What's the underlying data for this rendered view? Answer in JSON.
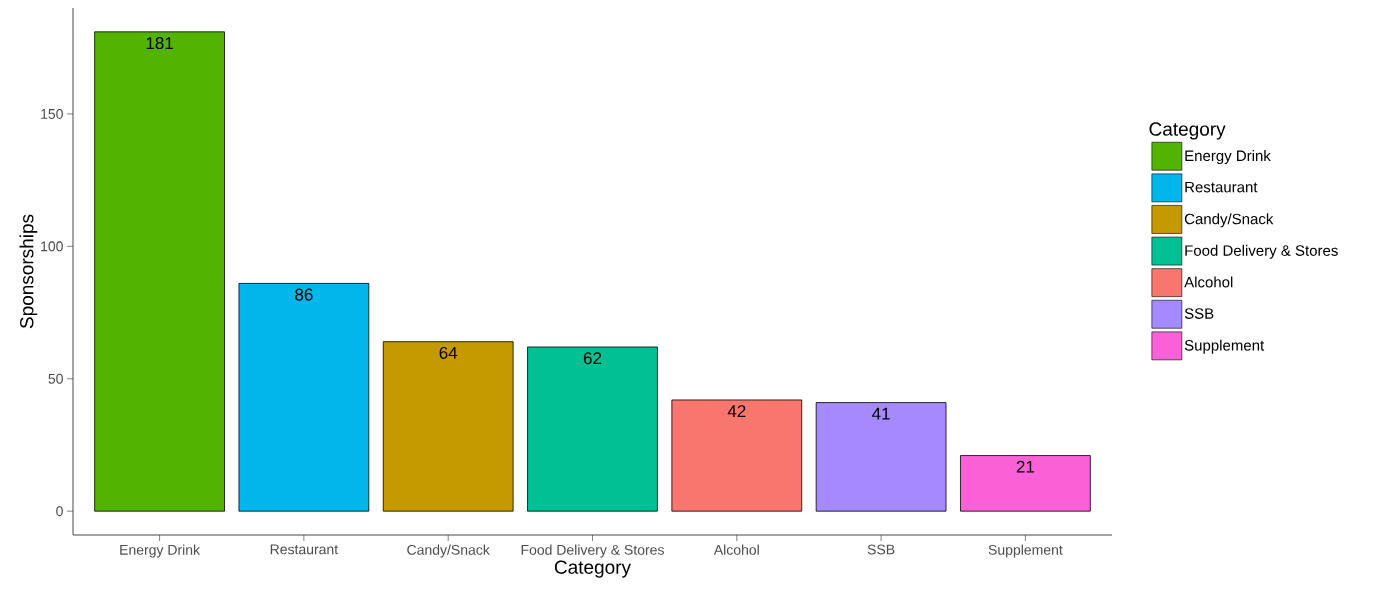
{
  "chart_data": {
    "type": "bar",
    "xlabel": "Category",
    "ylabel": "Sponsorships",
    "legend_title": "Category",
    "categories": [
      "Energy Drink",
      "Restaurant",
      "Candy/Snack",
      "Food Delivery & Stores",
      "Alcohol",
      "SSB",
      "Supplement"
    ],
    "series": [
      {
        "name": "Energy Drink",
        "color": "#53b400",
        "values": [
          181,
          null,
          null,
          null,
          null,
          null,
          null
        ]
      },
      {
        "name": "Restaurant",
        "color": "#00b6eb",
        "values": [
          null,
          86,
          null,
          null,
          null,
          null,
          null
        ]
      },
      {
        "name": "Candy/Snack",
        "color": "#c49a00",
        "values": [
          null,
          null,
          64,
          null,
          null,
          null,
          null
        ]
      },
      {
        "name": "Food Delivery & Stores",
        "color": "#00c094",
        "values": [
          null,
          null,
          null,
          62,
          null,
          null,
          null
        ]
      },
      {
        "name": "Alcohol",
        "color": "#f8766d",
        "values": [
          null,
          null,
          null,
          null,
          42,
          null,
          null
        ]
      },
      {
        "name": "SSB",
        "color": "#a58aff",
        "values": [
          null,
          null,
          null,
          null,
          null,
          41,
          null
        ]
      },
      {
        "name": "Supplement",
        "color": "#fb61d7",
        "values": [
          null,
          null,
          null,
          null,
          null,
          null,
          21
        ]
      }
    ],
    "ylim": [
      -9,
      190
    ],
    "yticks": [
      0,
      50,
      100,
      150
    ],
    "data_labels": true,
    "legend": "right"
  }
}
